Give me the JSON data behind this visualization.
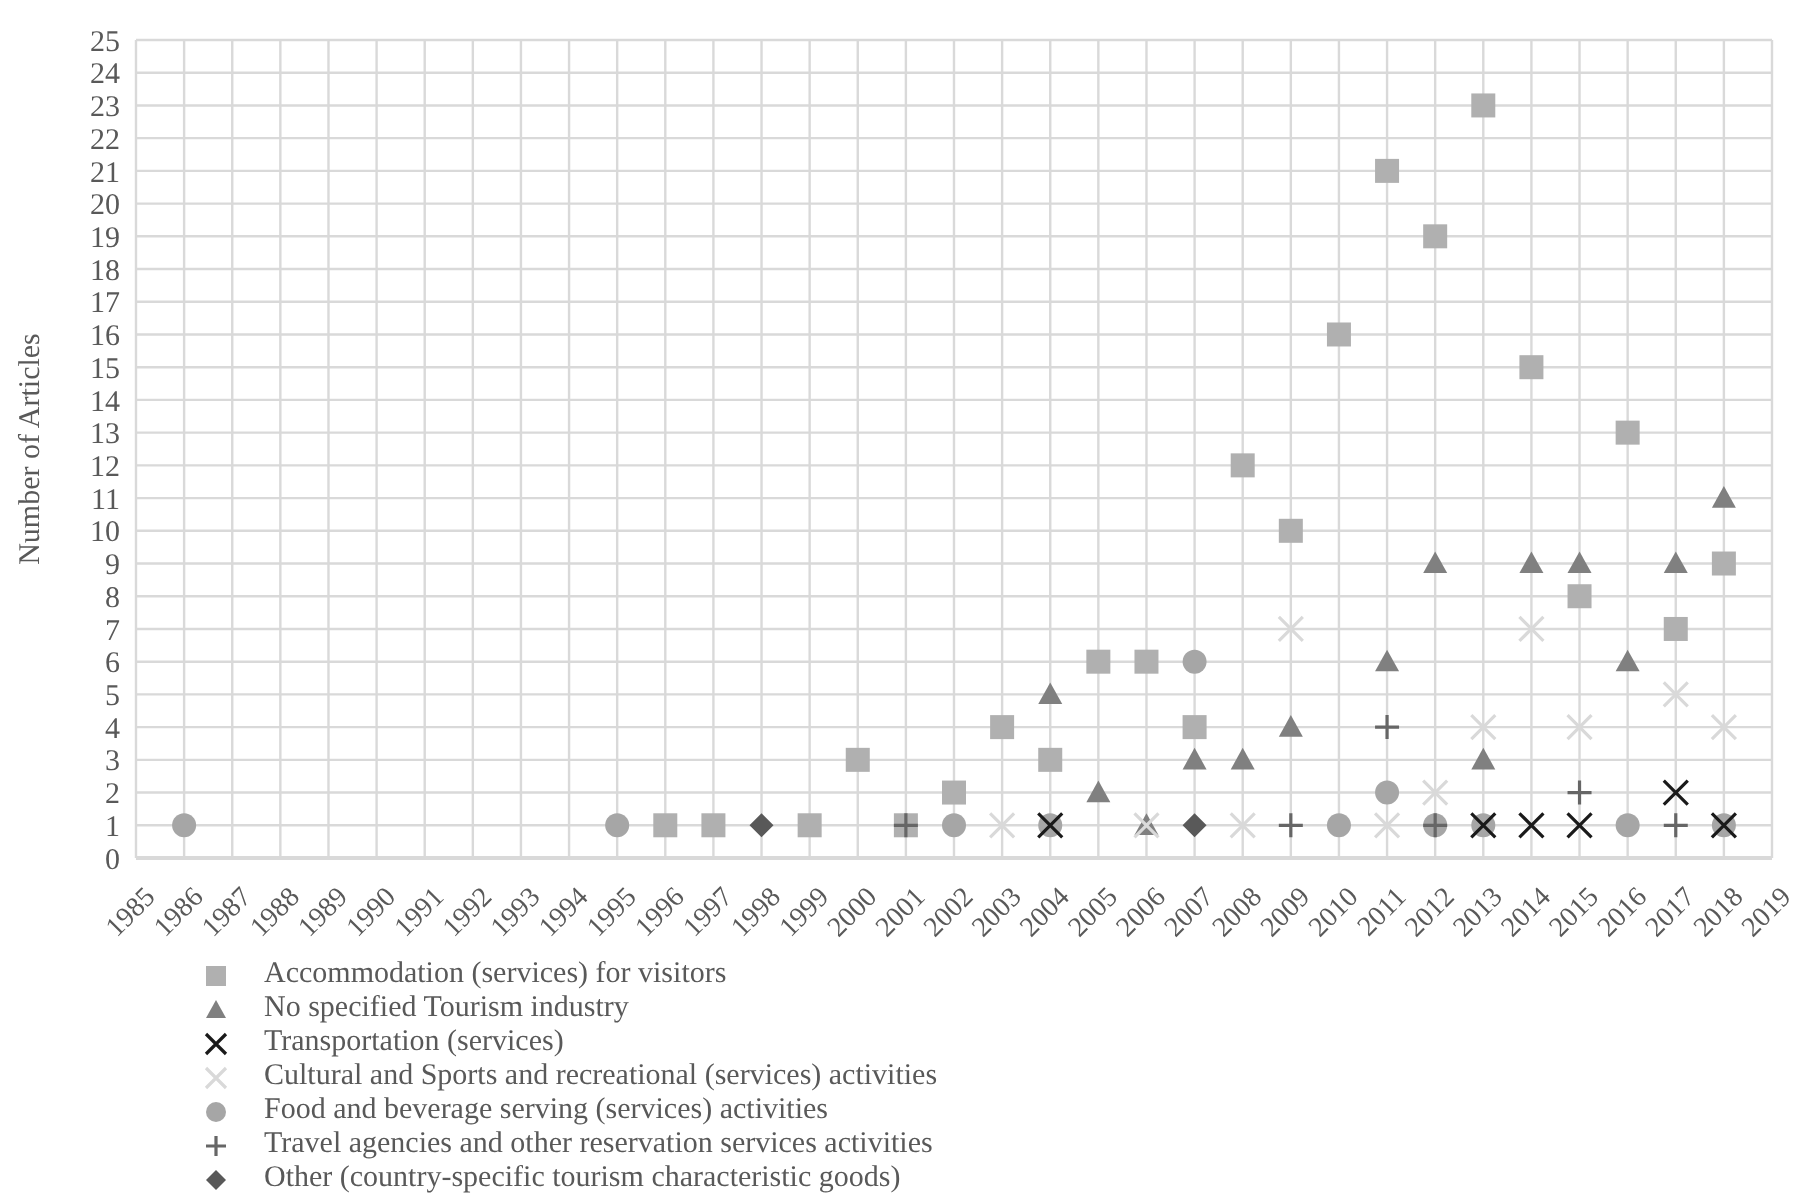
{
  "chart_data": {
    "type": "scatter",
    "ylabel": "Number of Articles",
    "xlim": [
      1985,
      2019
    ],
    "xticks": [
      1985,
      1986,
      1987,
      1988,
      1989,
      1990,
      1991,
      1992,
      1993,
      1994,
      1995,
      1996,
      1997,
      1998,
      1999,
      2000,
      2001,
      2002,
      2003,
      2004,
      2005,
      2006,
      2007,
      2008,
      2009,
      2010,
      2011,
      2012,
      2013,
      2014,
      2015,
      2016,
      2017,
      2018,
      2019
    ],
    "ylim": [
      0,
      25
    ],
    "yticks": [
      0,
      1,
      2,
      3,
      4,
      5,
      6,
      7,
      8,
      9,
      10,
      11,
      12,
      13,
      14,
      15,
      16,
      17,
      18,
      19,
      20,
      21,
      22,
      23,
      24,
      25
    ],
    "grid": true,
    "legend": "bottom left",
    "series": [
      {
        "name": "Accommodation (services) for visitors",
        "color": "#b0b0b0",
        "marker": "square",
        "x": [
          1996,
          1997,
          1999,
          2000,
          2001,
          2002,
          2003,
          2004,
          2005,
          2006,
          2007,
          2008,
          2009,
          2010,
          2011,
          2012,
          2013,
          2014,
          2015,
          2016,
          2017,
          2018
        ],
        "values": [
          1,
          1,
          1,
          3,
          1,
          2,
          4,
          3,
          6,
          6,
          4,
          12,
          10,
          16,
          21,
          19,
          23,
          15,
          8,
          13,
          7,
          9
        ]
      },
      {
        "name": "No specified Tourism industry",
        "color": "#808080",
        "marker": "triangle",
        "x": [
          2004,
          2005,
          2006,
          2007,
          2008,
          2009,
          2011,
          2012,
          2013,
          2014,
          2015,
          2016,
          2017,
          2018
        ],
        "values": [
          5,
          2,
          1,
          3,
          3,
          4,
          6,
          9,
          3,
          9,
          9,
          6,
          9,
          11
        ]
      },
      {
        "name": "Transportation (services)",
        "color": "#1a1a1a",
        "marker": "cross",
        "x": [
          2004,
          2013,
          2014,
          2015,
          2017,
          2018
        ],
        "values": [
          1,
          1,
          1,
          1,
          2,
          1
        ]
      },
      {
        "name": "Cultural and Sports and recreational (services) activities",
        "color": "#d9d9d9",
        "marker": "cross",
        "x": [
          2003,
          2006,
          2008,
          2009,
          2011,
          2012,
          2013,
          2014,
          2015,
          2017,
          2018
        ],
        "values": [
          1,
          1,
          1,
          7,
          1,
          2,
          4,
          7,
          4,
          5,
          4
        ]
      },
      {
        "name": "Food and beverage serving (services) activities",
        "color": "#a6a6a6",
        "marker": "circle",
        "x": [
          1986,
          1995,
          2002,
          2004,
          2007,
          2010,
          2011,
          2012,
          2013,
          2016,
          2018
        ],
        "values": [
          1,
          1,
          1,
          1,
          6,
          1,
          2,
          1,
          1,
          1,
          1
        ]
      },
      {
        "name": "Travel agencies and other reservation services activities",
        "color": "#666666",
        "marker": "plus",
        "x": [
          2001,
          2009,
          2011,
          2012,
          2015,
          2017
        ],
        "values": [
          1,
          1,
          4,
          1,
          2,
          1
        ]
      },
      {
        "name": "Other (country-specific tourism characteristic goods)",
        "color": "#595959",
        "marker": "diamond",
        "x": [
          1998,
          2007
        ],
        "values": [
          1,
          1
        ]
      }
    ]
  }
}
